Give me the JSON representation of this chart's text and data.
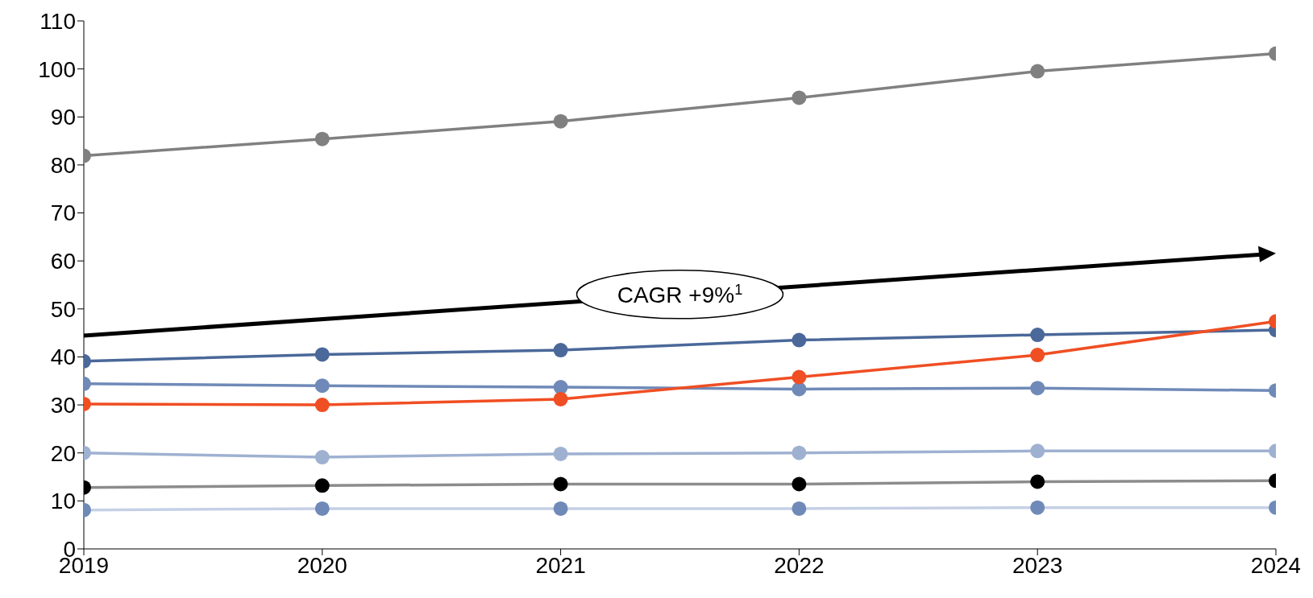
{
  "chart_data": {
    "type": "line",
    "x": [
      2019,
      2020,
      2021,
      2022,
      2023,
      2024
    ],
    "xlim": [
      2019,
      2024
    ],
    "xticks": [
      2019,
      2020,
      2021,
      2022,
      2023,
      2024
    ],
    "ylim": [
      0,
      110
    ],
    "yticks": [
      0,
      10,
      20,
      30,
      40,
      50,
      60,
      70,
      80,
      90,
      100,
      110
    ],
    "grid": false,
    "legend": false,
    "marker": "circle",
    "line_style": "solid",
    "series": [
      {
        "color": "#808080",
        "values": [
          81.9,
          85.4,
          89.1,
          94.0,
          99.5,
          103.2
        ]
      },
      {
        "color": "#4a6899",
        "values": [
          39.1,
          40.5,
          41.4,
          43.5,
          44.6,
          45.6
        ]
      },
      {
        "color": "#6f8ab8",
        "values": [
          34.4,
          34.0,
          33.7,
          33.3,
          33.5,
          33.0
        ]
      },
      {
        "color": "#f04e23",
        "values": [
          30.2,
          30.0,
          31.2,
          35.8,
          40.4,
          47.4
        ]
      },
      {
        "color": "#9fb1d1",
        "values": [
          20.0,
          19.1,
          19.8,
          20.0,
          20.4,
          20.4
        ]
      },
      {
        "color": "#8c8c8c",
        "colors": [
          "#000000",
          "#000000",
          "#000000",
          "#000000",
          "#000000",
          "#000000"
        ],
        "values": [
          12.8,
          13.2,
          13.5,
          13.5,
          14.0,
          14.2
        ]
      },
      {
        "color": "#c5d0e6",
        "colors": [
          "#6f8ab8",
          "#6f8ab8",
          "#6f8ab8",
          "#6f8ab8",
          "#6f8ab8",
          "#6f8ab8"
        ],
        "values": [
          8.1,
          8.4,
          8.4,
          8.4,
          8.6,
          8.6
        ]
      }
    ],
    "annotations": [
      "CAGR +9%$^{1}$"
    ]
  }
}
